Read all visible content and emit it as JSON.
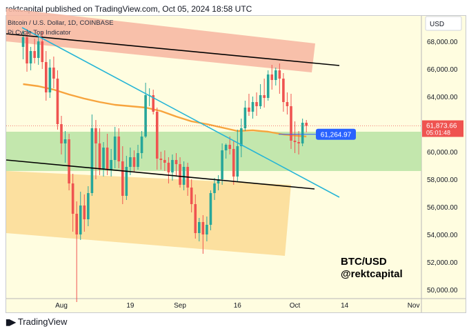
{
  "publisher_line": "rektcapital published on TradingView.com, Oct 05, 2024 18:58 UTC",
  "chart_header": {
    "symbol_line": "Bitcoin / U.S. Dollar, 1D, COINBASE",
    "indicator_line": "Pi Cycle Top Indicator"
  },
  "currency_button": "USD",
  "watermark": {
    "line1": "BTC/USD",
    "line2": "@rektcapital"
  },
  "footer_brand": "TradingView",
  "colors": {
    "background": "#fffde0",
    "up": "#26a69a",
    "down": "#ef5350",
    "ma": "#f7a43d",
    "trendline": "#26b5d6",
    "channel_line": "#000000",
    "green_zone": "#b9e3a3",
    "red_zone": "#f7b5a0",
    "orange_zone": "#fbd58a",
    "price_label": "#ef5350",
    "level_label": "#2962ff"
  },
  "chart_data": {
    "type": "candlestick",
    "y_axis": {
      "min": 49000,
      "max": 70000,
      "ticks": [
        "50,000.00",
        "52,000.00",
        "54,000.00",
        "56,000.00",
        "58,000.00",
        "60,000.00",
        "62,000.00",
        "64,000.00",
        "66,000.00",
        "68,000.00"
      ]
    },
    "x_axis": {
      "ticks": [
        {
          "label": "Aug",
          "day": 0
        },
        {
          "label": "19",
          "day": 18
        },
        {
          "label": "Sep",
          "day": 31
        },
        {
          "label": "16",
          "day": 46
        },
        {
          "label": "Oct",
          "day": 61
        },
        {
          "label": "14",
          "day": 74
        },
        {
          "label": "Nov",
          "day": 92
        }
      ]
    },
    "last_price": {
      "value": "61,873.66",
      "countdown": "05:01:48"
    },
    "level_label": "61,264.97",
    "level_value": 61264.97,
    "candles": [
      {
        "day": -10,
        "o": 67600,
        "h": 68800,
        "l": 66700,
        "c": 68300
      },
      {
        "day": -9,
        "o": 68300,
        "h": 68900,
        "l": 65800,
        "c": 66400
      },
      {
        "day": -8,
        "o": 66400,
        "h": 67600,
        "l": 65900,
        "c": 67300
      },
      {
        "day": -7,
        "o": 67300,
        "h": 68200,
        "l": 66400,
        "c": 66800
      },
      {
        "day": -6,
        "o": 66800,
        "h": 68500,
        "l": 66300,
        "c": 68000
      },
      {
        "day": -5,
        "o": 68000,
        "h": 68700,
        "l": 66000,
        "c": 66500
      },
      {
        "day": -4,
        "o": 66500,
        "h": 67300,
        "l": 63700,
        "c": 64300
      },
      {
        "day": -3,
        "o": 64300,
        "h": 66700,
        "l": 63900,
        "c": 66100
      },
      {
        "day": -2,
        "o": 66100,
        "h": 66900,
        "l": 64600,
        "c": 65300
      },
      {
        "day": -1,
        "o": 65300,
        "h": 65900,
        "l": 61600,
        "c": 62000
      },
      {
        "day": 0,
        "o": 62000,
        "h": 62600,
        "l": 59800,
        "c": 60600
      },
      {
        "day": 1,
        "o": 60600,
        "h": 61500,
        "l": 59200,
        "c": 60900
      },
      {
        "day": 2,
        "o": 60900,
        "h": 61300,
        "l": 57200,
        "c": 57700
      },
      {
        "day": 3,
        "o": 57700,
        "h": 58400,
        "l": 54200,
        "c": 55500
      },
      {
        "day": 4,
        "o": 55500,
        "h": 56400,
        "l": 49100,
        "c": 54000
      },
      {
        "day": 5,
        "o": 54000,
        "h": 57100,
        "l": 53600,
        "c": 56100
      },
      {
        "day": 6,
        "o": 56100,
        "h": 56900,
        "l": 54200,
        "c": 55100
      },
      {
        "day": 7,
        "o": 55100,
        "h": 57500,
        "l": 54600,
        "c": 57000
      },
      {
        "day": 8,
        "o": 57000,
        "h": 62700,
        "l": 56800,
        "c": 61700
      },
      {
        "day": 9,
        "o": 61700,
        "h": 62300,
        "l": 58000,
        "c": 60600
      },
      {
        "day": 10,
        "o": 60600,
        "h": 61700,
        "l": 58300,
        "c": 58700
      },
      {
        "day": 11,
        "o": 58700,
        "h": 60700,
        "l": 58200,
        "c": 60300
      },
      {
        "day": 12,
        "o": 60300,
        "h": 61300,
        "l": 58300,
        "c": 58700
      },
      {
        "day": 13,
        "o": 58700,
        "h": 60200,
        "l": 58200,
        "c": 59400
      },
      {
        "day": 14,
        "o": 59400,
        "h": 61800,
        "l": 58800,
        "c": 61100
      },
      {
        "day": 15,
        "o": 61100,
        "h": 61700,
        "l": 58800,
        "c": 59300
      },
      {
        "day": 16,
        "o": 59300,
        "h": 60400,
        "l": 56200,
        "c": 56800
      },
      {
        "day": 17,
        "o": 56800,
        "h": 59700,
        "l": 56500,
        "c": 58900
      },
      {
        "day": 18,
        "o": 58900,
        "h": 60300,
        "l": 58300,
        "c": 59600
      },
      {
        "day": 19,
        "o": 59600,
        "h": 60100,
        "l": 58500,
        "c": 58900
      },
      {
        "day": 20,
        "o": 58900,
        "h": 60500,
        "l": 58700,
        "c": 59900
      },
      {
        "day": 21,
        "o": 59900,
        "h": 61500,
        "l": 59500,
        "c": 61100
      },
      {
        "day": 22,
        "o": 61100,
        "h": 65000,
        "l": 61000,
        "c": 64100
      },
      {
        "day": 23,
        "o": 64100,
        "h": 64600,
        "l": 63300,
        "c": 64100
      },
      {
        "day": 24,
        "o": 64100,
        "h": 64500,
        "l": 62700,
        "c": 62900
      },
      {
        "day": 25,
        "o": 62900,
        "h": 63200,
        "l": 58700,
        "c": 59500
      },
      {
        "day": 26,
        "o": 59500,
        "h": 60000,
        "l": 58700,
        "c": 59400
      },
      {
        "day": 27,
        "o": 59400,
        "h": 60100,
        "l": 58600,
        "c": 59200
      },
      {
        "day": 28,
        "o": 59200,
        "h": 59600,
        "l": 57700,
        "c": 58500
      },
      {
        "day": 29,
        "o": 58500,
        "h": 59800,
        "l": 57900,
        "c": 59400
      },
      {
        "day": 30,
        "o": 59400,
        "h": 59900,
        "l": 58200,
        "c": 59100
      },
      {
        "day": 31,
        "o": 59100,
        "h": 59600,
        "l": 57400,
        "c": 57600
      },
      {
        "day": 32,
        "o": 57600,
        "h": 59300,
        "l": 57200,
        "c": 58900
      },
      {
        "day": 33,
        "o": 58900,
        "h": 59200,
        "l": 56800,
        "c": 57400
      },
      {
        "day": 34,
        "o": 57400,
        "h": 58000,
        "l": 55600,
        "c": 56200
      },
      {
        "day": 35,
        "o": 56200,
        "h": 56900,
        "l": 53700,
        "c": 54100
      },
      {
        "day": 36,
        "o": 54100,
        "h": 55200,
        "l": 53500,
        "c": 54900
      },
      {
        "day": 37,
        "o": 54900,
        "h": 55400,
        "l": 52600,
        "c": 54000
      },
      {
        "day": 38,
        "o": 54000,
        "h": 55300,
        "l": 53500,
        "c": 54700
      },
      {
        "day": 39,
        "o": 54700,
        "h": 57200,
        "l": 54300,
        "c": 57000
      },
      {
        "day": 40,
        "o": 57000,
        "h": 58100,
        "l": 56500,
        "c": 57700
      },
      {
        "day": 41,
        "o": 57700,
        "h": 58300,
        "l": 57200,
        "c": 58000
      },
      {
        "day": 42,
        "o": 58000,
        "h": 60600,
        "l": 57600,
        "c": 60100
      },
      {
        "day": 43,
        "o": 60100,
        "h": 60600,
        "l": 59500,
        "c": 60500
      },
      {
        "day": 44,
        "o": 60500,
        "h": 61100,
        "l": 59800,
        "c": 60200
      },
      {
        "day": 45,
        "o": 60200,
        "h": 60800,
        "l": 57600,
        "c": 58200
      },
      {
        "day": 46,
        "o": 58200,
        "h": 61600,
        "l": 57800,
        "c": 60400
      },
      {
        "day": 47,
        "o": 60400,
        "h": 62400,
        "l": 59600,
        "c": 61700
      },
      {
        "day": 48,
        "o": 61700,
        "h": 63700,
        "l": 61500,
        "c": 63200
      },
      {
        "day": 49,
        "o": 63200,
        "h": 64200,
        "l": 62600,
        "c": 62900
      },
      {
        "day": 50,
        "o": 62900,
        "h": 64000,
        "l": 62400,
        "c": 63600
      },
      {
        "day": 51,
        "o": 63600,
        "h": 64300,
        "l": 62600,
        "c": 63300
      },
      {
        "day": 52,
        "o": 63300,
        "h": 64900,
        "l": 63100,
        "c": 64100
      },
      {
        "day": 53,
        "o": 64100,
        "h": 65300,
        "l": 63200,
        "c": 63900
      },
      {
        "day": 54,
        "o": 63900,
        "h": 65900,
        "l": 63700,
        "c": 65600
      },
      {
        "day": 55,
        "o": 65600,
        "h": 66300,
        "l": 64500,
        "c": 65200
      },
      {
        "day": 56,
        "o": 65200,
        "h": 66100,
        "l": 64800,
        "c": 65900
      },
      {
        "day": 57,
        "o": 65900,
        "h": 66400,
        "l": 64200,
        "c": 65300
      },
      {
        "day": 58,
        "o": 65300,
        "h": 65700,
        "l": 62900,
        "c": 63600
      },
      {
        "day": 59,
        "o": 63600,
        "h": 64300,
        "l": 62700,
        "c": 63300
      },
      {
        "day": 60,
        "o": 63300,
        "h": 64200,
        "l": 60200,
        "c": 60800
      },
      {
        "day": 61,
        "o": 60800,
        "h": 62200,
        "l": 59900,
        "c": 60700
      },
      {
        "day": 62,
        "o": 60700,
        "h": 61500,
        "l": 59800,
        "c": 60600
      },
      {
        "day": 63,
        "o": 60600,
        "h": 62400,
        "l": 60400,
        "c": 62100
      },
      {
        "day": 64,
        "o": 62100,
        "h": 62300,
        "l": 61400,
        "c": 61870
      }
    ],
    "moving_average": [
      {
        "day": -10,
        "v": 64900
      },
      {
        "day": -6,
        "v": 64750
      },
      {
        "day": -2,
        "v": 64500
      },
      {
        "day": 2,
        "v": 64150
      },
      {
        "day": 6,
        "v": 63850
      },
      {
        "day": 10,
        "v": 63600
      },
      {
        "day": 14,
        "v": 63400
      },
      {
        "day": 18,
        "v": 63300
      },
      {
        "day": 22,
        "v": 63200
      },
      {
        "day": 26,
        "v": 62950
      },
      {
        "day": 30,
        "v": 62550
      },
      {
        "day": 34,
        "v": 62200
      },
      {
        "day": 38,
        "v": 62000
      },
      {
        "day": 42,
        "v": 61750
      },
      {
        "day": 46,
        "v": 61500
      },
      {
        "day": 50,
        "v": 61550
      },
      {
        "day": 54,
        "v": 61450
      },
      {
        "day": 58,
        "v": 61250
      },
      {
        "day": 62,
        "v": 61150
      },
      {
        "day": 64,
        "v": 61100
      }
    ]
  }
}
